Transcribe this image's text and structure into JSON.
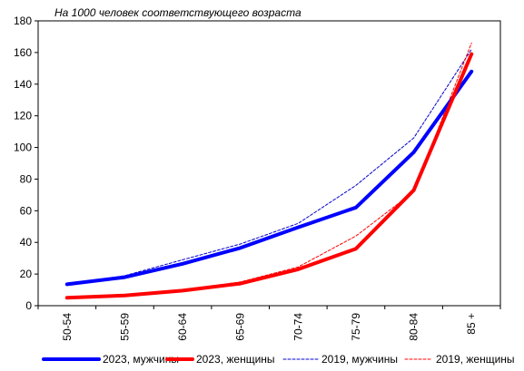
{
  "chart_data": {
    "type": "line",
    "title": "",
    "annotation": "На 1000 человек соответствующего возраста",
    "xlabel": "",
    "ylabel": "",
    "categories": [
      "50-54",
      "55-59",
      "60-64",
      "65-69",
      "70-74",
      "75-79",
      "80-84",
      "85 +"
    ],
    "ylim": [
      0,
      180
    ],
    "yticks": [
      0,
      20,
      40,
      60,
      80,
      100,
      120,
      140,
      160,
      180
    ],
    "grid": false,
    "legend_position": "bottom",
    "series": [
      {
        "name": "2023, мужчины",
        "color": "#0000ff",
        "style": "solid-thick",
        "values": [
          13.5,
          18,
          26.5,
          36.5,
          49.5,
          62,
          97,
          148
        ]
      },
      {
        "name": "2023, женщины",
        "color": "#ff0000",
        "style": "solid-thick",
        "values": [
          5,
          6.5,
          9.5,
          14,
          23,
          36,
          73,
          159
        ]
      },
      {
        "name": "2019, мужчины",
        "color": "#0000cc",
        "style": "dashed-thin",
        "values": [
          13.5,
          19,
          29,
          39,
          52,
          76,
          106,
          162
        ]
      },
      {
        "name": "2019, женщины",
        "color": "#ff0000",
        "style": "dashed-thin",
        "values": [
          5,
          7,
          10,
          15,
          24.5,
          44,
          72,
          166
        ]
      }
    ]
  }
}
